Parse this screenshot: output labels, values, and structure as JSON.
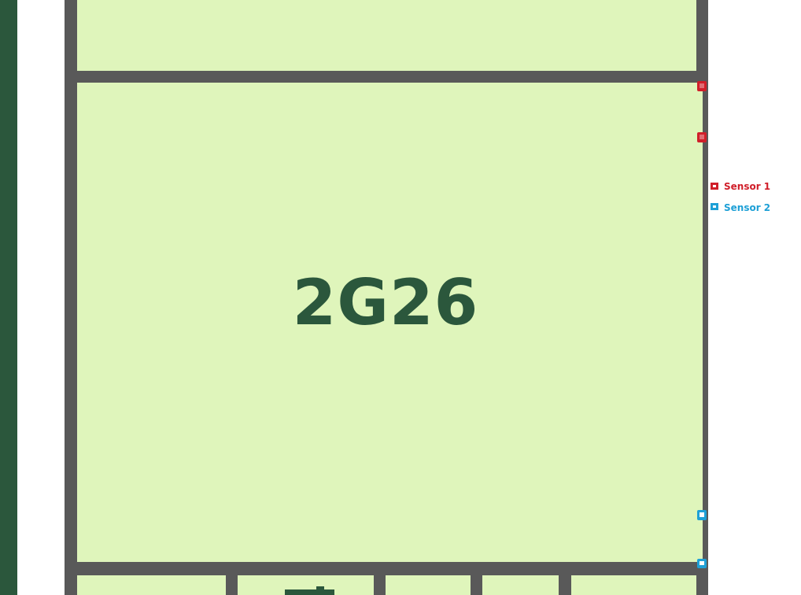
{
  "floorplan": {
    "room_main_label": "2G26",
    "colors": {
      "room_fill": "#dff5bb",
      "wall": "#595959",
      "accent_bar": "#2b573c",
      "label": "#2b573c",
      "sensor_1": "#d01f2a",
      "sensor_2": "#1ea0d6"
    }
  },
  "legend": {
    "items": [
      {
        "label": "Sensor 1",
        "color": "#d01f2a"
      },
      {
        "label": "Sensor 2",
        "color": "#1ea0d6"
      }
    ]
  },
  "sensors": [
    {
      "type": "sensor-1"
    },
    {
      "type": "sensor-1"
    },
    {
      "type": "sensor-2"
    },
    {
      "type": "sensor-2"
    }
  ]
}
